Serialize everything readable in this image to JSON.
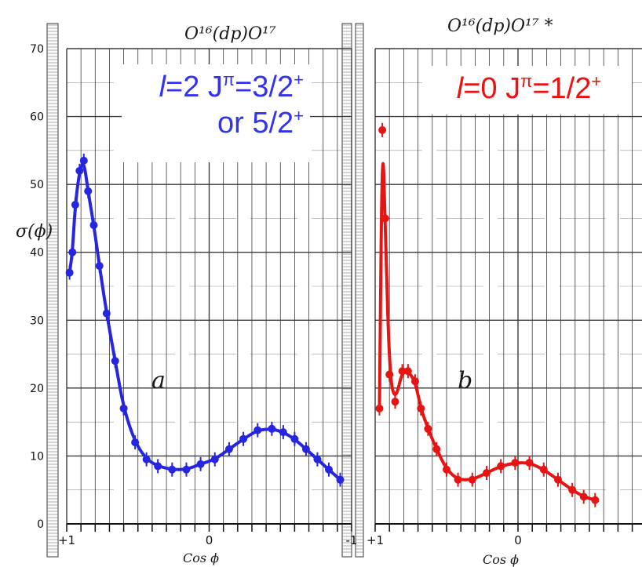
{
  "colors": {
    "panel_a": "#2626e0",
    "panel_b": "#e81414",
    "grid": "#3a3a3a",
    "background": "#ffffff"
  },
  "chart_data": [
    {
      "type": "scatter",
      "panel_label": "a",
      "title": "O¹⁶(dp)O¹⁷",
      "ylabel": "σ(ϕ)",
      "xlabel": "Cos ϕ",
      "x_ticks": [
        "+1",
        "0",
        "-1"
      ],
      "y_ticks": [
        "0",
        "10",
        "20",
        "30",
        "40",
        "50",
        "60",
        "70"
      ],
      "xlim": [
        1,
        -1
      ],
      "ylim": [
        0,
        70
      ],
      "annotation": {
        "ell": "l",
        "line1": "=2 J",
        "pi": "π",
        "val1": "=3/2",
        "sup1": "+",
        "line2": "or 5/2",
        "sup2": "+"
      },
      "series": [
        {
          "values_x": [
            0.98,
            0.96,
            0.94,
            0.91,
            0.88,
            0.85,
            0.81,
            0.77,
            0.72,
            0.66,
            0.6,
            0.52,
            0.44,
            0.36,
            0.26,
            0.16,
            0.06,
            -0.04,
            -0.14,
            -0.24,
            -0.34,
            -0.44,
            -0.52,
            -0.6,
            -0.68,
            -0.76,
            -0.84,
            -0.92
          ],
          "values_y": [
            37,
            40,
            47,
            52,
            53.5,
            49,
            44,
            38,
            31,
            24,
            17,
            12,
            9.5,
            8.5,
            8,
            8,
            8.8,
            9.5,
            11,
            12.5,
            13.8,
            14,
            13.5,
            12.5,
            11,
            9.5,
            8,
            6.5
          ]
        }
      ]
    },
    {
      "type": "scatter",
      "panel_label": "b",
      "title": "O¹⁶(dp)O¹⁷ *",
      "xlabel": "Cos ϕ",
      "x_ticks": [
        "+1",
        "0"
      ],
      "xlim": [
        1,
        -1
      ],
      "ylim": [
        0,
        70
      ],
      "annotation": {
        "ell": "l",
        "line1": "=0 J",
        "pi": "π",
        "val1": "=1/2",
        "sup1": "+"
      },
      "series": [
        {
          "values_x": [
            0.97,
            0.95,
            0.93,
            0.9,
            0.86,
            0.81,
            0.77,
            0.72,
            0.68,
            0.63,
            0.57,
            0.5,
            0.42,
            0.32,
            0.22,
            0.12,
            0.02,
            -0.08,
            -0.18,
            -0.28,
            -0.38,
            -0.46,
            -0.54
          ],
          "values_y": [
            17,
            58,
            45,
            22,
            18,
            22.5,
            22.5,
            21,
            17,
            14,
            11,
            8,
            6.5,
            6.5,
            7.5,
            8.5,
            9,
            9,
            8,
            6.5,
            5,
            4,
            3.5
          ]
        }
      ]
    }
  ]
}
